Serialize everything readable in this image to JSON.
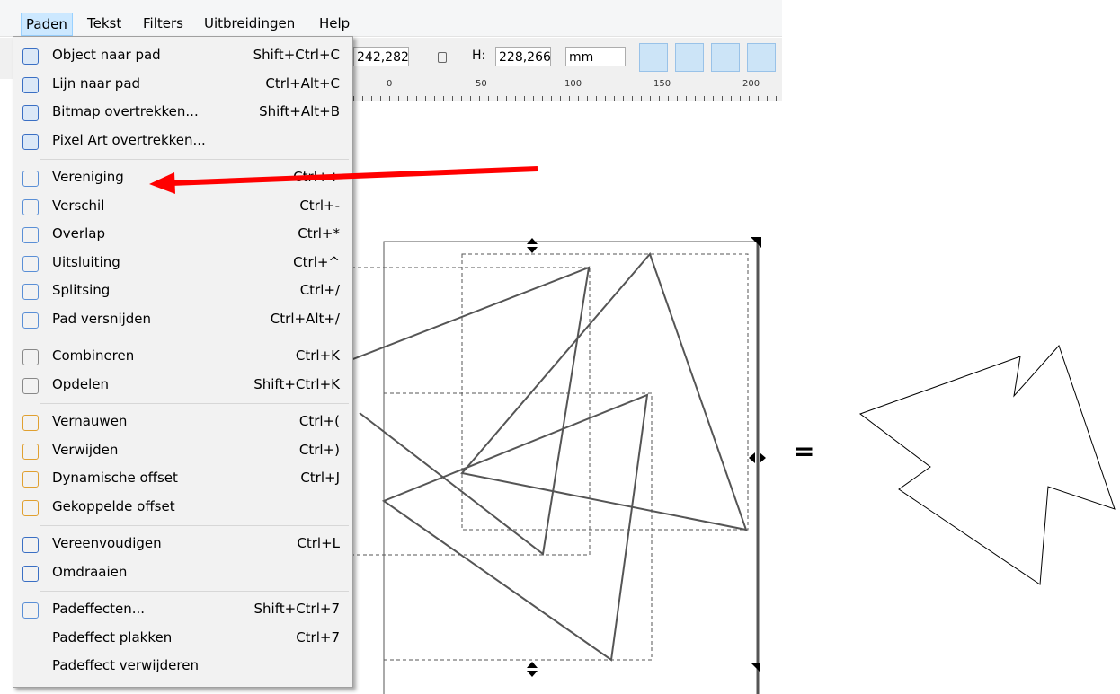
{
  "menubar": [
    "Paden",
    "Tekst",
    "Filters",
    "Uitbreidingen",
    "Help"
  ],
  "toolbar": {
    "width_value": "242,282",
    "height_label": "H:",
    "height_value": "228,266",
    "unit": "mm"
  },
  "ruler": [
    "0",
    "50",
    "100",
    "150",
    "200"
  ],
  "menu": [
    [
      {
        "label": "Object naar pad",
        "shortcut": "Shift+Ctrl+C"
      },
      {
        "label": "Lijn naar pad",
        "shortcut": "Ctrl+Alt+C"
      },
      {
        "label": "Bitmap overtrekken...",
        "shortcut": "Shift+Alt+B"
      },
      {
        "label": "Pixel Art overtrekken..."
      }
    ],
    [
      {
        "label": "Vereniging",
        "shortcut": "Ctrl++"
      },
      {
        "label": "Verschil",
        "shortcut": "Ctrl+-"
      },
      {
        "label": "Overlap",
        "shortcut": "Ctrl+*"
      },
      {
        "label": "Uitsluiting",
        "shortcut": "Ctrl+^"
      },
      {
        "label": "Splitsing",
        "shortcut": "Ctrl+/"
      },
      {
        "label": "Pad versnijden",
        "shortcut": "Ctrl+Alt+/"
      }
    ],
    [
      {
        "label": "Combineren",
        "shortcut": "Ctrl+K"
      },
      {
        "label": "Opdelen",
        "shortcut": "Shift+Ctrl+K"
      }
    ],
    [
      {
        "label": "Vernauwen",
        "shortcut": "Ctrl+("
      },
      {
        "label": "Verwijden",
        "shortcut": "Ctrl+)"
      },
      {
        "label": "Dynamische offset",
        "shortcut": "Ctrl+J"
      },
      {
        "label": "Gekoppelde offset"
      }
    ],
    [
      {
        "label": "Vereenvoudigen",
        "shortcut": "Ctrl+L"
      },
      {
        "label": "Omdraaien"
      }
    ],
    [
      {
        "label": "Padeffecten...",
        "shortcut": "Shift+Ctrl+7"
      },
      {
        "label": "Padeffect plakken",
        "shortcut": "Ctrl+7"
      },
      {
        "label": "Padeffect verwijderen"
      }
    ]
  ],
  "equals": "="
}
